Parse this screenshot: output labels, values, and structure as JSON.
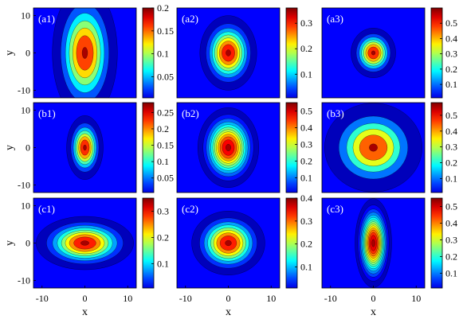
{
  "chart_data": {
    "type": "heatmap",
    "xlabel": "x",
    "ylabel": "y",
    "xticks": [
      "-10",
      "0",
      "10"
    ],
    "yticks": [
      "10",
      "0",
      "-10"
    ],
    "xlim": [
      -12,
      12
    ],
    "ylim": [
      -12,
      12
    ],
    "colormap": "jet",
    "panels": [
      {
        "label": "(a1)",
        "max": 0.2,
        "sx": 3.2,
        "sy": 7.5,
        "contours": 4,
        "cbar_ticks": [
          "0.2",
          "0.15",
          "0.1",
          "0.05"
        ],
        "cbar_values": [
          0.2,
          0.15,
          0.1,
          0.05
        ]
      },
      {
        "label": "(a2)",
        "max": 0.36,
        "sx": 2.8,
        "sy": 4.2,
        "contours": 6,
        "cbar_ticks": [
          "0.3",
          "0.2",
          "0.1"
        ],
        "cbar_values": [
          0.3,
          0.2,
          0.1
        ]
      },
      {
        "label": "(a3)",
        "max": 0.6,
        "sx": 2.2,
        "sy": 2.8,
        "contours": 5,
        "cbar_ticks": [
          "0.5",
          "0.4",
          "0.3",
          "0.2",
          "0.1"
        ],
        "cbar_values": [
          0.5,
          0.4,
          0.3,
          0.2,
          0.1
        ]
      },
      {
        "label": "(b1)",
        "max": 0.28,
        "sx": 1.8,
        "sy": 3.6,
        "contours": 5,
        "cbar_ticks": [
          "0.25",
          "0.2",
          "0.15",
          "0.1",
          "0.05"
        ],
        "cbar_values": [
          0.25,
          0.2,
          0.15,
          0.1,
          0.05
        ]
      },
      {
        "label": "(b2)",
        "max": 0.55,
        "sx": 3.0,
        "sy": 4.5,
        "contours": 9,
        "cbar_ticks": [
          "0.5",
          "0.4",
          "0.3",
          "0.2",
          "0.1"
        ],
        "cbar_values": [
          0.5,
          0.4,
          0.3,
          0.2,
          0.1
        ]
      },
      {
        "label": "(b3)",
        "max": 0.58,
        "sx": 4.8,
        "sy": 5.0,
        "contours": 3,
        "cbar_ticks": [
          "0.5",
          "0.4",
          "0.3",
          "0.2",
          "0.1"
        ],
        "cbar_values": [
          0.5,
          0.4,
          0.3,
          0.2,
          0.1
        ]
      },
      {
        "label": "(c1)",
        "max": 0.35,
        "sx": 4.8,
        "sy": 3.0,
        "contours": 6,
        "cbar_ticks": [
          "0.3",
          "0.2",
          "0.1"
        ],
        "cbar_values": [
          0.3,
          0.2,
          0.1
        ]
      },
      {
        "label": "(c2)",
        "max": 0.4,
        "sx": 3.6,
        "sy": 3.6,
        "contours": 6,
        "cbar_ticks": [
          "0.4",
          "0.3",
          "0.2",
          "0.1"
        ],
        "cbar_values": [
          0.4,
          0.3,
          0.2,
          0.1
        ]
      },
      {
        "label": "(c3)",
        "max": 0.55,
        "sx": 1.8,
        "sy": 5.0,
        "contours": 12,
        "cbar_ticks": [
          "0.5",
          "0.4",
          "0.3",
          "0.2",
          "0.1"
        ],
        "cbar_values": [
          0.5,
          0.4,
          0.3,
          0.2,
          0.1
        ]
      }
    ]
  }
}
